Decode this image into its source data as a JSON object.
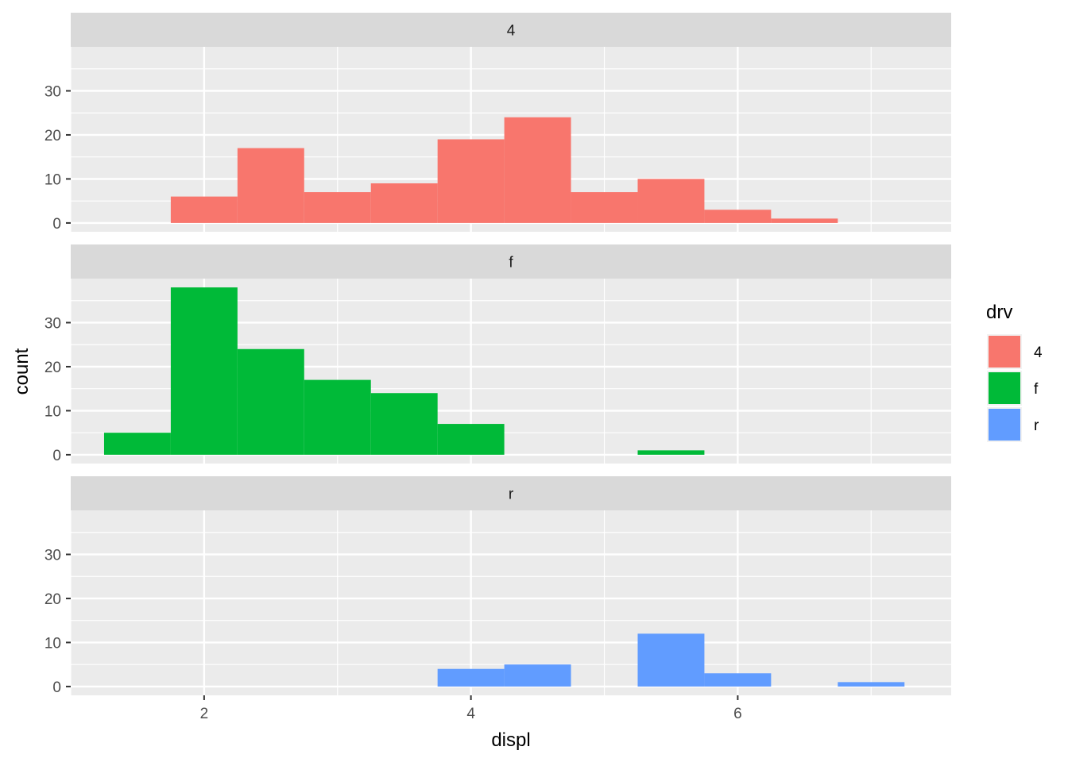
{
  "chart_data": {
    "type": "bar",
    "subtype": "faceted-histogram",
    "xlabel": "displ",
    "ylabel": "count",
    "x_ticks": [
      2,
      4,
      6
    ],
    "y_ticks": [
      0,
      10,
      20,
      30
    ],
    "xlim": [
      1,
      7.6
    ],
    "ylim": [
      -2,
      40
    ],
    "binwidth": 0.5,
    "grid": true,
    "facet_by": "drv",
    "legend": {
      "title": "drv",
      "position": "right",
      "items": [
        {
          "label": "4",
          "color": "#F8766D"
        },
        {
          "label": "f",
          "color": "#00BA38"
        },
        {
          "label": "r",
          "color": "#619CFF"
        }
      ]
    },
    "panels": [
      {
        "strip": "4",
        "color": "#F8766D",
        "bins": [
          {
            "x0": 1.75,
            "x1": 2.25,
            "count": 6
          },
          {
            "x0": 2.25,
            "x1": 2.75,
            "count": 17
          },
          {
            "x0": 2.75,
            "x1": 3.25,
            "count": 7
          },
          {
            "x0": 3.25,
            "x1": 3.75,
            "count": 9
          },
          {
            "x0": 3.75,
            "x1": 4.25,
            "count": 19
          },
          {
            "x0": 4.25,
            "x1": 4.75,
            "count": 24
          },
          {
            "x0": 4.75,
            "x1": 5.25,
            "count": 7
          },
          {
            "x0": 5.25,
            "x1": 5.75,
            "count": 10
          },
          {
            "x0": 5.75,
            "x1": 6.25,
            "count": 3
          },
          {
            "x0": 6.25,
            "x1": 6.75,
            "count": 1
          }
        ]
      },
      {
        "strip": "f",
        "color": "#00BA38",
        "bins": [
          {
            "x0": 1.25,
            "x1": 1.75,
            "count": 5
          },
          {
            "x0": 1.75,
            "x1": 2.25,
            "count": 38
          },
          {
            "x0": 2.25,
            "x1": 2.75,
            "count": 24
          },
          {
            "x0": 2.75,
            "x1": 3.25,
            "count": 17
          },
          {
            "x0": 3.25,
            "x1": 3.75,
            "count": 14
          },
          {
            "x0": 3.75,
            "x1": 4.25,
            "count": 7
          },
          {
            "x0": 5.25,
            "x1": 5.75,
            "count": 1
          }
        ]
      },
      {
        "strip": "r",
        "color": "#619CFF",
        "bins": [
          {
            "x0": 3.75,
            "x1": 4.25,
            "count": 4
          },
          {
            "x0": 4.25,
            "x1": 4.75,
            "count": 5
          },
          {
            "x0": 5.25,
            "x1": 5.75,
            "count": 12
          },
          {
            "x0": 5.75,
            "x1": 6.25,
            "count": 3
          },
          {
            "x0": 6.75,
            "x1": 7.25,
            "count": 1
          }
        ]
      }
    ]
  }
}
